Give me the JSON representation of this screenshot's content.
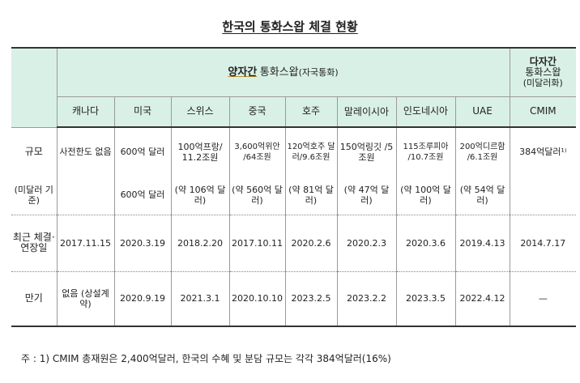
{
  "title": "한국의 통화스왑 체결 현황",
  "header": {
    "bilateral_main": "양자간",
    "bilateral_sub": "통화스왑",
    "bilateral_paren": "(자국통화)",
    "multilateral_line1": "다자간",
    "multilateral_line2": "통화스왑",
    "multilateral_line3": "(미달러화)",
    "countries": [
      "캐나다",
      "미국",
      "스위스",
      "중국",
      "호주",
      "말레이시아",
      "인도네시아",
      "UAE",
      "CMIM"
    ]
  },
  "rows": {
    "size_label": "규모",
    "size_sublabel": "(미달러 기준)",
    "size": [
      "사전한도 없음",
      "600억 달러",
      "100억프랑/ 11.2조원",
      "3,600억위안 /64조원",
      "120억호주 달러/9.6조원",
      "150억링깃 /5조원",
      "115조루피아 /10.7조원",
      "200억디르함 /6.1조원",
      "384억달러¹⁾"
    ],
    "size_usd": [
      "",
      "600억 달러",
      "(약 106억 달러)",
      "(약 560억 달러)",
      "(약 81억 달러)",
      "(약 47억 달러)",
      "(약 100억 달러)",
      "(약 54억 달러)",
      ""
    ],
    "date_label": "최근 체결· 연장일",
    "dates": [
      "2017.11.15",
      "2020.3.19",
      "2018.2.20",
      "2017.10.11",
      "2020.2.6",
      "2020.2.3",
      "2020.3.6",
      "2019.4.13",
      "2014.7.17"
    ],
    "maturity_label": "만기",
    "maturity": [
      "없음 (상설계약)",
      "2020.9.19",
      "2021.3.1",
      "2020.10.10",
      "2023.2.5",
      "2023.2.2",
      "2023.3.5",
      "2022.4.12",
      "—"
    ]
  },
  "note": "주 : 1) CMIM 총재원은 2,400억달러, 한국의 수혜 및 분담 규모는 각각 384억달러(16%)"
}
